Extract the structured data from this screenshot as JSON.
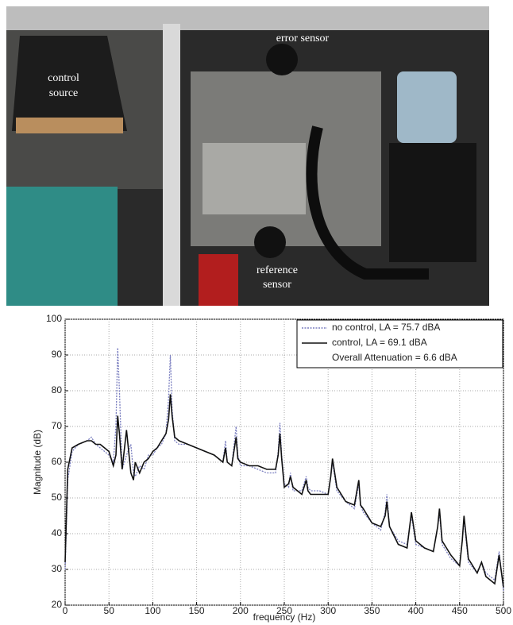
{
  "photo": {
    "labels": {
      "control_source": [
        "control",
        "source"
      ],
      "error_sensor": "error sensor",
      "reference_sensor": [
        "reference",
        "sensor"
      ]
    }
  },
  "chart_data": {
    "type": "line",
    "xlabel": "frequency (Hz)",
    "ylabel": "Magnitude (dB)",
    "annotation": "Overall Attenuation = 6.6 dBA",
    "xlim": [
      0,
      500
    ],
    "ylim": [
      20,
      100
    ],
    "xticks": [
      0,
      50,
      100,
      150,
      200,
      250,
      300,
      350,
      400,
      450,
      500
    ],
    "yticks": [
      20,
      30,
      40,
      50,
      60,
      70,
      80,
      90,
      100
    ],
    "grid": true,
    "legend": "upper right",
    "x": [
      0,
      3,
      8,
      15,
      25,
      30,
      35,
      40,
      45,
      50,
      55,
      58,
      60,
      62,
      65,
      70,
      75,
      78,
      80,
      85,
      90,
      95,
      100,
      105,
      110,
      115,
      118,
      120,
      122,
      125,
      130,
      140,
      150,
      160,
      170,
      180,
      183,
      185,
      190,
      195,
      197,
      200,
      210,
      220,
      230,
      240,
      243,
      245,
      247,
      250,
      255,
      257,
      260,
      270,
      275,
      277,
      280,
      290,
      300,
      303,
      305,
      310,
      320,
      330,
      335,
      337,
      340,
      350,
      360,
      365,
      367,
      370,
      380,
      390,
      393,
      395,
      400,
      410,
      420,
      425,
      427,
      430,
      440,
      450,
      453,
      455,
      460,
      470,
      475,
      480,
      490,
      495,
      500
    ],
    "series": [
      {
        "name": "no control, LA = 75.7 dBA",
        "color": "#7b7fc0",
        "linestyle": "dotted",
        "values": [
          30,
          55,
          63,
          65,
          66,
          67,
          65,
          64,
          63,
          62,
          60,
          70,
          92,
          80,
          58,
          62,
          65,
          57,
          56,
          59,
          58,
          62,
          62,
          64,
          65,
          68,
          78,
          90,
          75,
          66,
          65,
          65,
          64,
          63,
          62,
          60,
          66,
          60,
          59,
          70,
          62,
          59,
          59,
          58,
          57,
          57,
          63,
          71,
          62,
          54,
          53,
          57,
          52,
          52,
          56,
          53,
          52,
          52,
          51,
          56,
          60,
          52,
          49,
          47,
          54,
          48,
          46,
          43,
          41,
          46,
          51,
          42,
          38,
          37,
          42,
          45,
          37,
          36,
          35,
          42,
          46,
          37,
          33,
          31,
          38,
          44,
          32,
          29,
          32,
          29,
          27,
          35,
          24
        ]
      },
      {
        "name": "control, LA = 69.1 dBA",
        "color": "#111111",
        "linestyle": "solid",
        "values": [
          32,
          58,
          64,
          65,
          66,
          66,
          65,
          65,
          64,
          63,
          59,
          62,
          73,
          68,
          58,
          69,
          57,
          55,
          60,
          57,
          60,
          61,
          63,
          64,
          66,
          68,
          72,
          79,
          73,
          67,
          66,
          65,
          64,
          63,
          62,
          60,
          64,
          60,
          59,
          67,
          61,
          60,
          59,
          59,
          58,
          58,
          62,
          68,
          61,
          53,
          54,
          56,
          53,
          51,
          55,
          52,
          51,
          51,
          51,
          56,
          61,
          53,
          49,
          48,
          55,
          48,
          47,
          43,
          42,
          45,
          49,
          42,
          37,
          36,
          42,
          46,
          38,
          36,
          35,
          42,
          47,
          38,
          34,
          31,
          38,
          45,
          33,
          29,
          32,
          28,
          26,
          34,
          25
        ]
      }
    ]
  }
}
